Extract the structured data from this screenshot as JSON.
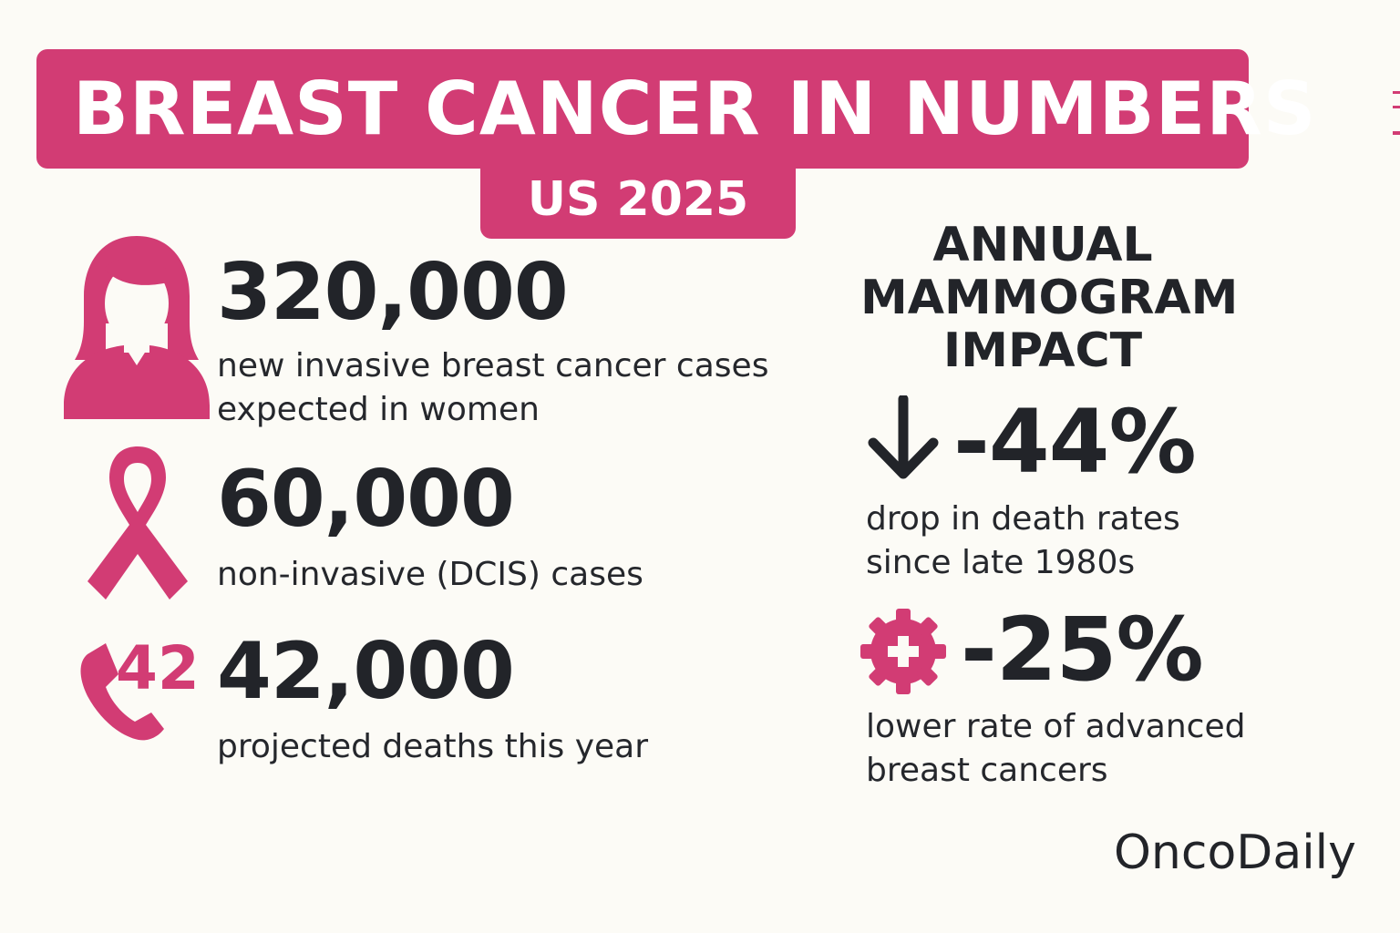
{
  "header": {
    "title": "BREAST CANCER IN NUMBERS",
    "subtitle": "US 2025"
  },
  "stats_left": [
    {
      "icon": "woman-avatar-icon",
      "value": "320,000",
      "desc_lines": [
        "new invasive breast cancer cases",
        "expected in women"
      ]
    },
    {
      "icon": "awareness-ribbon-icon",
      "value": "60,000",
      "desc_lines": [
        "non-invasive (DCIS) cases"
      ]
    },
    {
      "icon": "phone-icon",
      "icon_text": "42",
      "value": "42,000",
      "desc_lines": [
        "projected deaths this year"
      ]
    }
  ],
  "impact": {
    "title_lines": [
      "ANNUAL",
      "MAMMOGRAM",
      "IMPACT"
    ],
    "items": [
      {
        "icon": "down-arrow-icon",
        "value": "-44%",
        "desc_lines": [
          "drop in death rates",
          "since late 1980s"
        ]
      },
      {
        "icon": "medical-cross-badge-icon",
        "value": "-25%",
        "desc_lines": [
          "lower rate of advanced",
          "breast cancers"
        ]
      }
    ]
  },
  "brand": "OncoDaily",
  "colors": {
    "accent": "#d23c74",
    "background": "#fcfbf6",
    "text": "#222429"
  }
}
